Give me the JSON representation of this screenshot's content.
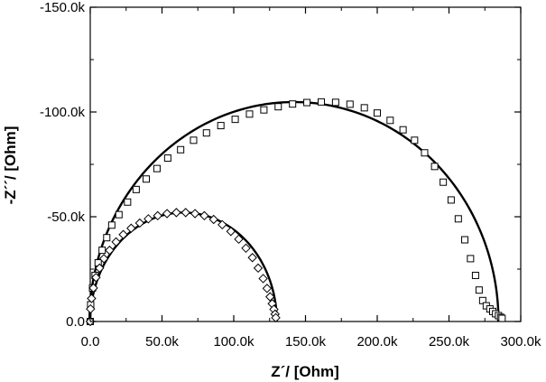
{
  "chart_data": {
    "type": "scatter",
    "title": "",
    "xlabel": "Z´/ [Ohm]",
    "ylabel": "-Z´´/ [Ohm]",
    "xlim": [
      0,
      300000
    ],
    "ylim": [
      0,
      -150000
    ],
    "grid": false,
    "legend": "none",
    "x_ticks": [
      0,
      50000,
      100000,
      150000,
      200000,
      250000,
      300000
    ],
    "x_tick_labels": [
      "0.0",
      "50.0k",
      "100.0k",
      "150.0k",
      "200.0k",
      "250.0k",
      "300.0k"
    ],
    "y_ticks": [
      0,
      -50000,
      -100000,
      -150000
    ],
    "y_tick_labels": [
      "0.0",
      "-50.0k",
      "-100.0k",
      "-150.0k"
    ],
    "series": [
      {
        "marker": "square",
        "color": "#000000",
        "fit_line": true,
        "center": [
          142000,
          0
        ],
        "radius": 142500,
        "x": [
          0,
          280,
          1600,
          3400,
          5500,
          8300,
          11500,
          15000,
          20000,
          26000,
          32000,
          39000,
          46500,
          54000,
          63000,
          72000,
          81000,
          91000,
          101000,
          111000,
          121000,
          131000,
          141000,
          151000,
          161000,
          171000,
          181000,
          191000,
          200000,
          209000,
          218000,
          226000,
          233000,
          240000,
          246000,
          251500,
          256500,
          261000,
          265000,
          268500,
          271000,
          273500,
          276000,
          278500,
          280500,
          282500,
          284500,
          286000,
          287000
        ],
        "y": [
          0,
          -8000,
          -16000,
          -22000,
          -28000,
          -34000,
          -40000,
          -46000,
          -51000,
          -57000,
          -63000,
          -68000,
          -73000,
          -78000,
          -82000,
          -86500,
          -90000,
          -93500,
          -96500,
          -99000,
          -101000,
          -102500,
          -103800,
          -104500,
          -104800,
          -104600,
          -103700,
          -102000,
          -99500,
          -96000,
          -91500,
          -86500,
          -80500,
          -74000,
          -66500,
          -58000,
          -49000,
          -39000,
          -30000,
          -22000,
          -15000,
          -10000,
          -7500,
          -6000,
          -4800,
          -3700,
          -2800,
          -2000,
          -1500
        ]
      },
      {
        "marker": "diamond",
        "color": "#000000",
        "fit_line": true,
        "center": [
          65000,
          0
        ],
        "radius": 65000,
        "x": [
          0,
          200,
          900,
          2200,
          4000,
          6500,
          9500,
          13500,
          18000,
          23000,
          28500,
          34500,
          40500,
          47000,
          53500,
          60000,
          66500,
          73000,
          79500,
          86000,
          92000,
          98000,
          103500,
          108500,
          113000,
          117000,
          120500,
          123200,
          125300,
          126800,
          128000,
          128800,
          129300
        ],
        "y": [
          0,
          -6000,
          -11000,
          -16000,
          -21000,
          -25500,
          -30000,
          -34000,
          -38000,
          -41500,
          -44500,
          -47000,
          -49000,
          -50500,
          -51500,
          -52000,
          -52000,
          -51500,
          -50500,
          -48700,
          -46200,
          -43000,
          -39300,
          -35000,
          -30500,
          -25500,
          -20500,
          -15800,
          -11800,
          -8500,
          -5800,
          -3500,
          -1800
        ]
      }
    ]
  }
}
